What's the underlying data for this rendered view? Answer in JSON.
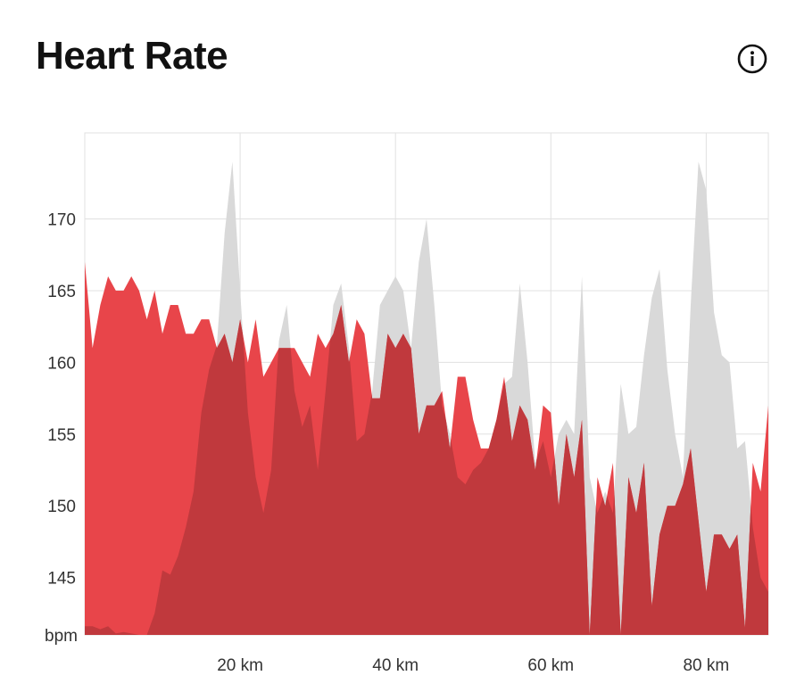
{
  "header": {
    "title": "Heart Rate",
    "info_icon": "info-circle-icon"
  },
  "colors": {
    "primary_fill": "#e8454a",
    "overlay_fill": "#c0393d",
    "comparison_fill": "#d9d9d9",
    "grid": "#e0e0e0"
  },
  "chart_data": {
    "type": "area",
    "title": "Heart Rate",
    "xlabel": "",
    "ylabel": "bpm",
    "xlim": [
      0,
      88
    ],
    "ylim": [
      141,
      176
    ],
    "x_ticks": [
      {
        "value": 20,
        "label": "20 km"
      },
      {
        "value": 40,
        "label": "40 km"
      },
      {
        "value": 60,
        "label": "60 km"
      },
      {
        "value": 80,
        "label": "80 km"
      }
    ],
    "y_ticks": [
      {
        "value": 170,
        "label": "170"
      },
      {
        "value": 165,
        "label": "165"
      },
      {
        "value": 160,
        "label": "160"
      },
      {
        "value": 155,
        "label": "155"
      },
      {
        "value": 150,
        "label": "150"
      },
      {
        "value": 145,
        "label": "145"
      }
    ],
    "y_unit_label": "bpm",
    "grid": true,
    "series": [
      {
        "role": "comparison",
        "color": "#d9d9d9",
        "x": [
          0,
          1,
          2,
          3,
          4,
          5,
          6,
          7,
          8,
          9,
          9.5,
          10,
          11,
          12,
          13,
          14,
          15,
          16,
          17,
          18,
          19,
          20,
          21,
          22,
          23,
          24,
          25,
          26,
          27,
          28,
          29,
          30,
          31,
          32,
          33,
          34,
          35,
          36,
          37,
          38,
          39,
          40,
          41,
          42,
          43,
          44,
          45,
          46,
          47,
          48,
          49,
          50,
          51,
          52,
          53,
          54,
          55,
          56,
          57,
          58,
          59,
          60,
          61,
          62,
          63,
          64,
          65,
          66,
          67,
          68,
          69,
          70,
          71,
          72,
          73,
          74,
          75,
          76,
          77,
          78,
          79,
          80,
          81,
          82,
          83,
          84,
          85,
          86,
          87,
          88
        ],
        "values": [
          141.6,
          141.6,
          141.4,
          141.6,
          141.1,
          141.2,
          141.1,
          141.0,
          141.0,
          142.5,
          144.0,
          145.5,
          145.2,
          146.5,
          148.5,
          151.0,
          156.5,
          159.5,
          161.2,
          169.0,
          174.0,
          165.0,
          156.5,
          152.0,
          149.5,
          152.5,
          161.5,
          164.0,
          158.0,
          155.5,
          157.0,
          152.5,
          158.0,
          164.0,
          165.5,
          161.0,
          154.5,
          155.0,
          158.0,
          164.0,
          165.0,
          166.0,
          165.0,
          161.0,
          167.0,
          170.0,
          164.0,
          157.0,
          155.0,
          152.0,
          151.5,
          152.5,
          153.0,
          154.0,
          156.0,
          158.5,
          159.0,
          165.5,
          160.0,
          153.0,
          154.5,
          152.0,
          155.0,
          156.0,
          155.0,
          166.0,
          152.0,
          149.5,
          151.0,
          149.5,
          158.5,
          155.0,
          155.5,
          160.5,
          164.5,
          166.5,
          159.5,
          155.0,
          152.0,
          164.0,
          174.0,
          172.0,
          163.5,
          160.5,
          160.0,
          154.0,
          154.5,
          148.5,
          145.0,
          144.0
        ],
        "value_fill_note": ""
      },
      {
        "role": "primary",
        "color": "#e8454a",
        "x": [
          0,
          0.5,
          1,
          2,
          3,
          4,
          5,
          6,
          7,
          8,
          9,
          10,
          11,
          12,
          13,
          14,
          15,
          16,
          17,
          18,
          19,
          20,
          21,
          22,
          23,
          24,
          25,
          26,
          27,
          28,
          29,
          30,
          31,
          32,
          33,
          34,
          35,
          36,
          37,
          38,
          39,
          40,
          41,
          42,
          43,
          44,
          45,
          46,
          47,
          48,
          49,
          50,
          51,
          52,
          53,
          54,
          55,
          56,
          57,
          58,
          59,
          60,
          61,
          62,
          63,
          64,
          65,
          66,
          67,
          68,
          69,
          70,
          71,
          72,
          73,
          74,
          75,
          76,
          77,
          78,
          79,
          80,
          81,
          82,
          83,
          84,
          85,
          86,
          87,
          88
        ],
        "values": [
          167.0,
          164.0,
          161.0,
          164.0,
          166.0,
          165.0,
          165.0,
          166.0,
          165.0,
          163.0,
          165.0,
          162.0,
          164.0,
          164.0,
          162.0,
          162.0,
          163.0,
          163.0,
          161.0,
          162.0,
          160.0,
          163.0,
          160.0,
          163.0,
          159.0,
          160.0,
          161.0,
          161.0,
          161.0,
          160.0,
          159.0,
          162.0,
          161.0,
          162.0,
          164.0,
          160.0,
          163.0,
          162.0,
          157.5,
          157.5,
          162.0,
          161.0,
          162.0,
          161.0,
          155.0,
          157.0,
          157.0,
          158.0,
          154.0,
          159.0,
          159.0,
          156.0,
          154.0,
          154.0,
          156.0,
          159.0,
          154.5,
          157.0,
          156.0,
          152.5,
          157.0,
          156.5,
          150.0,
          155.0,
          152.0,
          156.0,
          141.0,
          152.0,
          150.0,
          153.0,
          141.0,
          152.0,
          149.5,
          153.0,
          143.0,
          148.0,
          150.0,
          150.0,
          151.5,
          154.0,
          149.0,
          144.0,
          148.0,
          148.0,
          147.0,
          148.0,
          141.5,
          153.0,
          151.0,
          157.0
        ]
      }
    ]
  }
}
